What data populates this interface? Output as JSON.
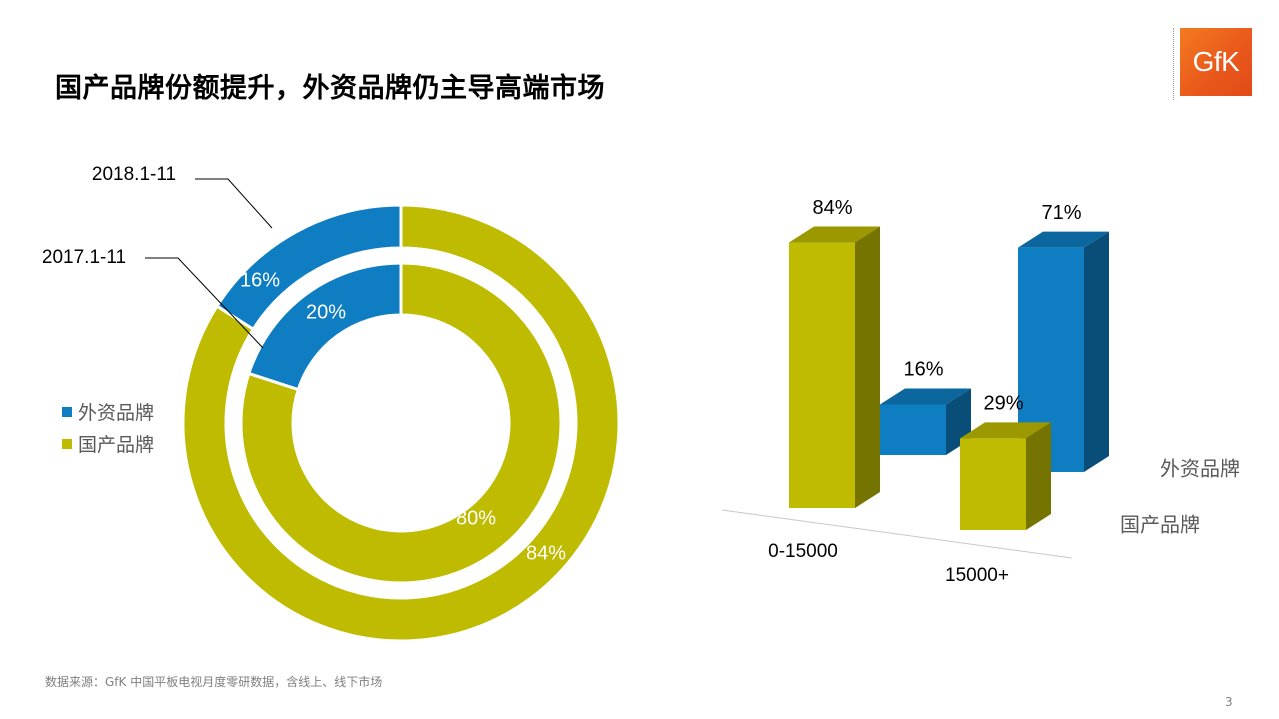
{
  "title": "国产品牌份额提升，外资品牌仍主导高端市场",
  "logo_text": "GfK",
  "source": "数据来源：GfK 中国平板电视月度零研数据，含线上、线下市场",
  "page_number": "3",
  "colors": {
    "foreign": "#0f7dc2",
    "domestic": "#bebb00"
  },
  "chart_data": [
    {
      "type": "pie",
      "variant": "donut",
      "rings": [
        {
          "name": "2018.1-11",
          "position": "outer",
          "slices": [
            {
              "label": "外资品牌",
              "value": 16
            },
            {
              "label": "国产品牌",
              "value": 84
            }
          ]
        },
        {
          "name": "2017.1-11",
          "position": "inner",
          "slices": [
            {
              "label": "外资品牌",
              "value": 20
            },
            {
              "label": "国产品牌",
              "value": 80
            }
          ]
        }
      ],
      "legend": [
        "外资品牌",
        "国产品牌"
      ],
      "legend_position": "left"
    },
    {
      "type": "bar",
      "variant": "3d",
      "categories": [
        "0-15000",
        "15000+"
      ],
      "series": [
        {
          "name": "外资品牌",
          "values": [
            16,
            71
          ]
        },
        {
          "name": "国产品牌",
          "values": [
            84,
            29
          ]
        }
      ],
      "value_unit": "%"
    }
  ]
}
